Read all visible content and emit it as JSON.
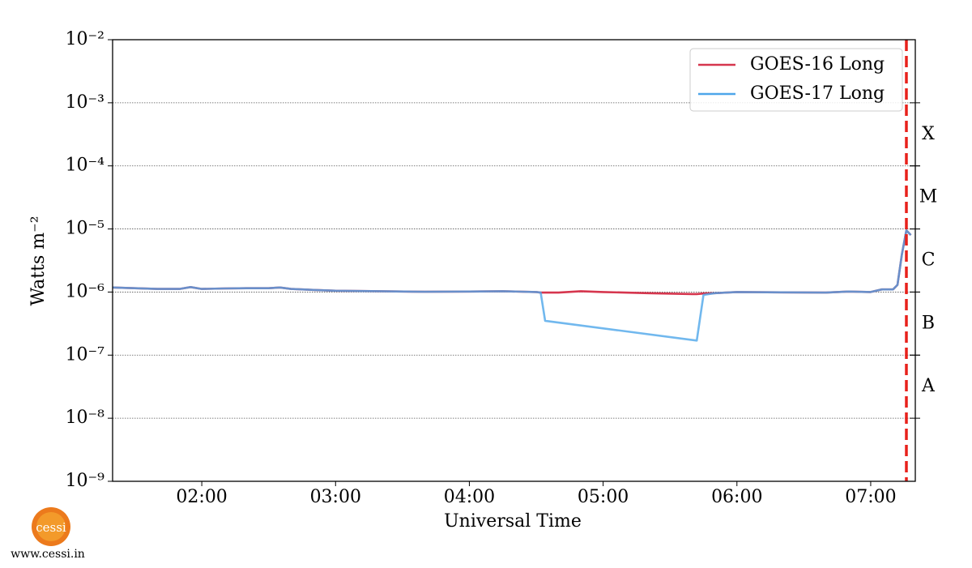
{
  "chart_data": {
    "type": "line",
    "ylabel": "Watts m⁻²",
    "xlabel": "Universal Time",
    "log_scale_y": true,
    "grid": true,
    "legend": "upper right",
    "xlim": [
      "01:20",
      "07:20"
    ],
    "xticks": [
      "02:00",
      "03:00",
      "04:00",
      "05:00",
      "06:00",
      "07:00"
    ],
    "ylim": [
      1e-09,
      0.01
    ],
    "yticks": [
      {
        "value": 1e-09,
        "label": "10⁻⁹"
      },
      {
        "value": 1e-08,
        "label": "10⁻⁸"
      },
      {
        "value": 1e-07,
        "label": "10⁻⁷"
      },
      {
        "value": 1e-06,
        "label": "10⁻⁶"
      },
      {
        "value": 1e-05,
        "label": "10⁻⁵"
      },
      {
        "value": 0.0001,
        "label": "10⁻⁴"
      },
      {
        "value": 0.001,
        "label": "10⁻³"
      },
      {
        "value": 0.01,
        "label": "10⁻²"
      }
    ],
    "flare_classes": [
      {
        "label": "A",
        "lower": 1e-08
      },
      {
        "label": "B",
        "lower": 1e-07
      },
      {
        "label": "C",
        "lower": 1e-06
      },
      {
        "label": "M",
        "lower": 1e-05
      },
      {
        "label": "X",
        "lower": 0.0001
      }
    ],
    "vline": {
      "x": "07:16",
      "color": "#e8211b"
    },
    "series": [
      {
        "name": "GOES-16 Long",
        "color": "#d6364e",
        "x": [
          "01:20",
          "01:30",
          "01:40",
          "01:50",
          "01:55",
          "02:00",
          "02:10",
          "02:20",
          "02:30",
          "02:35",
          "02:40",
          "02:50",
          "03:00",
          "03:20",
          "03:40",
          "04:00",
          "04:15",
          "04:30",
          "04:32",
          "04:34",
          "04:40",
          "04:50",
          "05:00",
          "05:20",
          "05:40",
          "05:42",
          "05:45",
          "05:50",
          "06:00",
          "06:20",
          "06:40",
          "06:50",
          "07:00",
          "07:05",
          "07:10",
          "07:12",
          "07:14",
          "07:16",
          "07:18"
        ],
        "values": [
          1.18e-06,
          1.15e-06,
          1.12e-06,
          1.12e-06,
          1.2e-06,
          1.12e-06,
          1.14e-06,
          1.15e-06,
          1.15e-06,
          1.18e-06,
          1.12e-06,
          1.08e-06,
          1.05e-06,
          1.03e-06,
          1.01e-06,
          1.02e-06,
          1.03e-06,
          1e-06,
          9.8e-07,
          9.8e-07,
          9.8e-07,
          1.03e-06,
          1e-06,
          9.6e-07,
          9.3e-07,
          9.3e-07,
          9.5e-07,
          9.6e-07,
          1e-06,
          9.9e-07,
          9.8e-07,
          1.02e-06,
          1e-06,
          1.1e-06,
          1.1e-06,
          1.3e-06,
          4e-06,
          9.5e-06,
          8e-06
        ]
      },
      {
        "name": "GOES-17 Long",
        "color": "#4da6ea",
        "x": [
          "01:20",
          "01:30",
          "01:40",
          "01:50",
          "01:55",
          "02:00",
          "02:10",
          "02:20",
          "02:30",
          "02:35",
          "02:40",
          "02:50",
          "03:00",
          "03:20",
          "03:40",
          "04:00",
          "04:15",
          "04:30",
          "04:32",
          "04:34",
          "05:42",
          "05:45",
          "05:50",
          "06:00",
          "06:20",
          "06:40",
          "06:50",
          "07:00",
          "07:05",
          "07:10",
          "07:12",
          "07:14",
          "07:16",
          "07:18"
        ],
        "values": [
          1.18e-06,
          1.15e-06,
          1.12e-06,
          1.12e-06,
          1.2e-06,
          1.12e-06,
          1.14e-06,
          1.15e-06,
          1.15e-06,
          1.18e-06,
          1.12e-06,
          1.08e-06,
          1.05e-06,
          1.03e-06,
          1.01e-06,
          1.02e-06,
          1.03e-06,
          1e-06,
          9.8e-07,
          3.5e-07,
          1.7e-07,
          9e-07,
          9.6e-07,
          1e-06,
          9.9e-07,
          9.8e-07,
          1.02e-06,
          1e-06,
          1.1e-06,
          1.1e-06,
          1.3e-06,
          4e-06,
          9.5e-06,
          8e-06
        ]
      }
    ]
  },
  "logo_text": "cessi",
  "footer": "www.cessi.in"
}
